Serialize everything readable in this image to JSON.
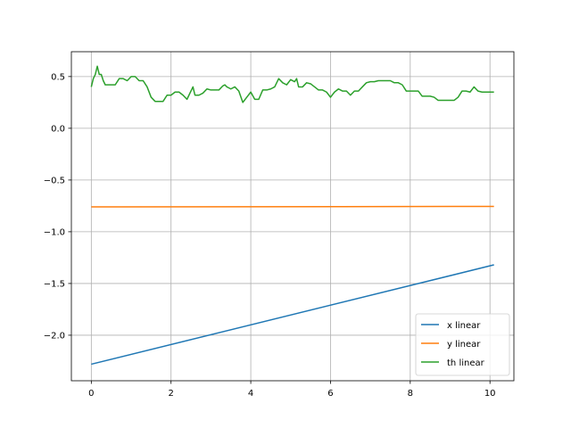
{
  "chart_data": {
    "type": "line",
    "title": "",
    "xlabel": "",
    "ylabel": "",
    "xlim": [
      -0.5,
      10.6
    ],
    "ylim": [
      -2.44,
      0.74
    ],
    "grid": true,
    "legend_position": "lower-right",
    "x_ticks": [
      0,
      2,
      4,
      6,
      8,
      10
    ],
    "x_tick_labels": [
      "0",
      "2",
      "4",
      "6",
      "8",
      "10"
    ],
    "y_ticks": [
      0.5,
      0.0,
      -0.5,
      -1.0,
      -1.5,
      -2.0
    ],
    "y_tick_labels": [
      "0.5",
      "0.0",
      "−0.5",
      "−1.0",
      "−1.5",
      "−2.0"
    ],
    "series": [
      {
        "name": "x linear",
        "color": "#1f77b4",
        "x": [
          0,
          10.1
        ],
        "y": [
          -2.28,
          -1.32
        ]
      },
      {
        "name": "y linear",
        "color": "#ff7f0e",
        "x": [
          0,
          10.1
        ],
        "y": [
          -0.76,
          -0.755
        ]
      },
      {
        "name": "th linear",
        "color": "#2ca02c",
        "x": [
          0,
          0.05,
          0.1,
          0.15,
          0.2,
          0.25,
          0.3,
          0.35,
          0.4,
          0.5,
          0.6,
          0.7,
          0.75,
          0.8,
          0.9,
          1.0,
          1.05,
          1.1,
          1.2,
          1.3,
          1.4,
          1.5,
          1.6,
          1.7,
          1.8,
          1.9,
          2.0,
          2.1,
          2.2,
          2.3,
          2.4,
          2.5,
          2.55,
          2.6,
          2.7,
          2.8,
          2.9,
          3.0,
          3.1,
          3.2,
          3.3,
          3.35,
          3.4,
          3.5,
          3.6,
          3.7,
          3.8,
          3.9,
          4.0,
          4.1,
          4.2,
          4.3,
          4.4,
          4.5,
          4.6,
          4.7,
          4.8,
          4.9,
          5.0,
          5.1,
          5.15,
          5.2,
          5.3,
          5.4,
          5.5,
          5.6,
          5.7,
          5.8,
          5.9,
          6.0,
          6.1,
          6.2,
          6.3,
          6.4,
          6.5,
          6.6,
          6.7,
          6.8,
          6.9,
          7.0,
          7.1,
          7.2,
          7.3,
          7.4,
          7.5,
          7.6,
          7.7,
          7.8,
          7.9,
          8.0,
          8.1,
          8.2,
          8.3,
          8.4,
          8.5,
          8.6,
          8.7,
          8.8,
          8.9,
          9.0,
          9.1,
          9.2,
          9.3,
          9.4,
          9.5,
          9.6,
          9.7,
          9.8,
          9.9,
          10.0,
          10.1
        ],
        "y": [
          0.4,
          0.48,
          0.52,
          0.6,
          0.52,
          0.52,
          0.46,
          0.42,
          0.42,
          0.42,
          0.42,
          0.48,
          0.48,
          0.48,
          0.46,
          0.5,
          0.5,
          0.5,
          0.46,
          0.46,
          0.4,
          0.3,
          0.26,
          0.26,
          0.26,
          0.32,
          0.32,
          0.35,
          0.35,
          0.32,
          0.28,
          0.36,
          0.4,
          0.32,
          0.32,
          0.34,
          0.38,
          0.37,
          0.37,
          0.37,
          0.41,
          0.42,
          0.4,
          0.38,
          0.4,
          0.36,
          0.25,
          0.3,
          0.35,
          0.28,
          0.28,
          0.37,
          0.37,
          0.38,
          0.4,
          0.48,
          0.44,
          0.42,
          0.47,
          0.45,
          0.48,
          0.4,
          0.4,
          0.44,
          0.43,
          0.4,
          0.37,
          0.37,
          0.35,
          0.3,
          0.35,
          0.38,
          0.36,
          0.36,
          0.32,
          0.36,
          0.36,
          0.4,
          0.44,
          0.45,
          0.45,
          0.46,
          0.46,
          0.46,
          0.46,
          0.44,
          0.44,
          0.42,
          0.36,
          0.36,
          0.36,
          0.36,
          0.31,
          0.31,
          0.31,
          0.3,
          0.27,
          0.27,
          0.27,
          0.27,
          0.27,
          0.3,
          0.36,
          0.36,
          0.35,
          0.4,
          0.36,
          0.35,
          0.35,
          0.35,
          0.35
        ]
      }
    ]
  }
}
